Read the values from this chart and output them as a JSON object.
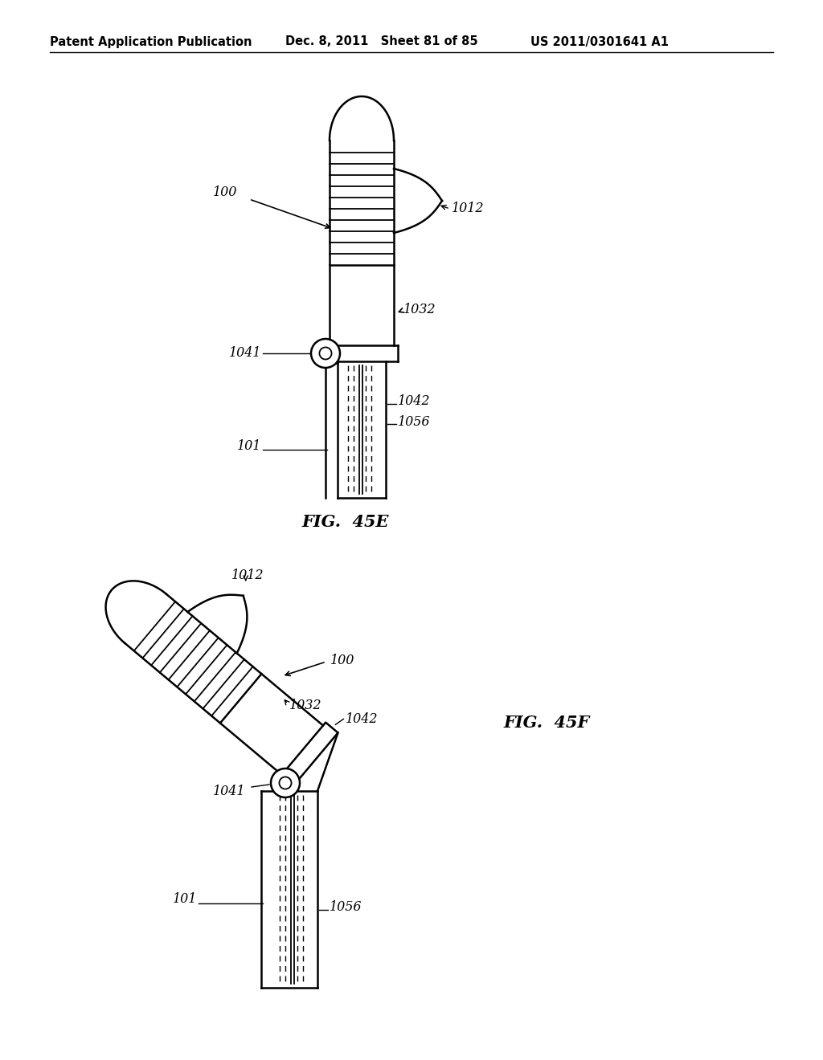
{
  "bg_color": "#ffffff",
  "header_left": "Patent Application Publication",
  "header_mid": "Dec. 8, 2011   Sheet 81 of 85",
  "header_right": "US 2011/0301641 A1",
  "fig45e_label": "FIG.  45E",
  "fig45f_label": "FIG.  45F"
}
